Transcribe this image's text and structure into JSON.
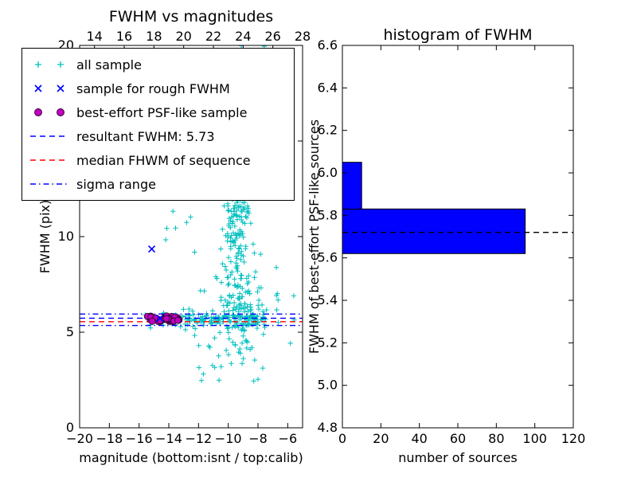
{
  "figure": {
    "background": "#ffffff"
  },
  "legend": {
    "items": [
      {
        "label": "all sample",
        "marker": "plus",
        "color": "#00bfbf"
      },
      {
        "label": "sample for rough FWHM",
        "marker": "x",
        "color": "#0000ff"
      },
      {
        "label": "best-effort PSF-like sample",
        "marker": "circle",
        "color": "#bf00bf",
        "edge_color": "#2e002e"
      },
      {
        "label": "resultant FWHM: 5.73",
        "marker": "dashed-line",
        "color": "#0000ff"
      },
      {
        "label": "median FHWM of sequence",
        "marker": "dashed-line",
        "color": "#ff0000"
      },
      {
        "label": "sigma range",
        "marker": "dashdot-line",
        "color": "#0000ff"
      }
    ]
  },
  "chart_data": [
    {
      "type": "scatter",
      "title": "FWHM vs magnitudes",
      "xlabel": "magnitude (bottom:isnt / top:calib)",
      "ylabel": "FWHM (pix)",
      "xlim": [
        -20,
        -5
      ],
      "ylim": [
        0,
        20
      ],
      "x_ticks": [
        -20,
        -18,
        -16,
        -14,
        -12,
        -10,
        -8,
        -6
      ],
      "y_ticks": [
        0,
        5,
        10,
        15,
        20
      ],
      "x_top_range": [
        13,
        28
      ],
      "x_top_ticks": [
        14,
        16,
        18,
        20,
        22,
        24,
        26,
        28
      ],
      "grid": false,
      "legend_position": "upper left",
      "series": [
        {
          "name": "all sample",
          "marker": "plus",
          "color": "#00bfbf",
          "clusters": [
            {
              "shape": "column",
              "x": [
                -10.4,
                -8.4
              ],
              "y": [
                4.2,
                20.0
              ],
              "count": 240
            },
            {
              "shape": "band",
              "x": [
                -15.8,
                -7.4
              ],
              "y": [
                5.25,
                6.15
              ],
              "count": 160
            },
            {
              "shape": "blob",
              "x": [
                -11.3,
                -6.9
              ],
              "y": [
                3.4,
                8.6
              ],
              "count": 110
            },
            {
              "shape": "sparse",
              "x": [
                -14.8,
                -7.2
              ],
              "y": [
                8.5,
                20.0
              ],
              "count": 50
            },
            {
              "shape": "sparse",
              "x": [
                -12.6,
                -7.4
              ],
              "y": [
                2.3,
                4.9
              ],
              "count": 20
            },
            {
              "shape": "sparse",
              "x": [
                -6.8,
                -5.4
              ],
              "y": [
                4.2,
                7.5
              ],
              "count": 8
            }
          ]
        },
        {
          "name": "sample for rough FWHM",
          "marker": "x",
          "color": "#0000ff",
          "points": [
            [
              -15.15,
              9.35
            ],
            [
              -14.6,
              5.72
            ]
          ]
        },
        {
          "name": "best-effort PSF-like sample",
          "marker": "circle",
          "color": "#bf00bf",
          "edge_color": "#2e002e",
          "cluster": {
            "x": [
              -15.55,
              -13.3
            ],
            "y": [
              5.55,
              5.85
            ],
            "count": 34
          }
        }
      ],
      "lines": [
        {
          "label": "resultant FWHM: 5.73",
          "y": 5.73,
          "color": "#0000ff",
          "style": "dashed"
        },
        {
          "label": "median FHWM of sequence",
          "y": 5.55,
          "color": "#ff0000",
          "style": "dashed"
        },
        {
          "label": "sigma range upper",
          "y": 5.95,
          "color": "#0000ff",
          "style": "dashdot"
        },
        {
          "label": "sigma range lower",
          "y": 5.35,
          "color": "#0000ff",
          "style": "dashdot"
        }
      ]
    },
    {
      "type": "bar",
      "orientation": "horizontal",
      "title": "histogram of FWHM",
      "xlabel": "number of sources",
      "ylabel": "FWHM of best-effort PSF-like sources",
      "xlim": [
        0,
        120
      ],
      "ylim": [
        4.8,
        6.6
      ],
      "x_ticks": [
        0,
        20,
        40,
        60,
        80,
        100,
        120
      ],
      "y_ticks": [
        4.8,
        5.0,
        5.2,
        5.4,
        5.6,
        5.8,
        6.0,
        6.2,
        6.4,
        6.6
      ],
      "bars": [
        {
          "from": 5.62,
          "to": 5.83,
          "value": 95
        },
        {
          "from": 5.83,
          "to": 6.05,
          "value": 10
        }
      ],
      "bar_color": "#0000ff",
      "bar_edge": "#000000",
      "mean_line": {
        "y": 5.72,
        "color": "#000000",
        "style": "dashed"
      },
      "grid": false
    }
  ]
}
